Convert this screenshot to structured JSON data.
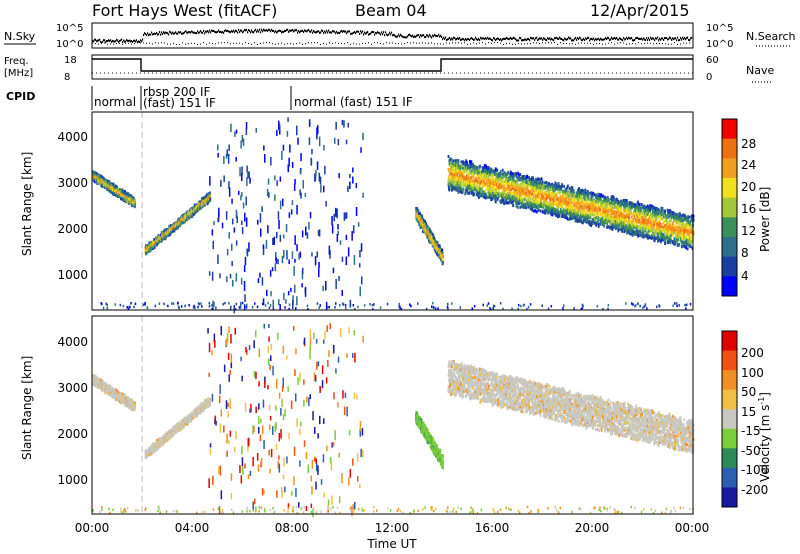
{
  "header": {
    "station": "Fort Hays West (fitACF)",
    "beam": "Beam 04",
    "date": "12/Apr/2015"
  },
  "noise_panel": {
    "left_label": "N.Sky",
    "right_label": "N.Search",
    "left_ticks": [
      "10^5",
      "10^0"
    ],
    "right_ticks": [
      "10^5",
      "10^0"
    ]
  },
  "freq_panel": {
    "left_label": "Freq.",
    "left_unit": "[MHz]",
    "left_ticks": [
      "18",
      "8"
    ],
    "right_label": "Nave",
    "right_ticks": [
      "60",
      "0"
    ]
  },
  "cpid": {
    "label": "CPID",
    "modes": [
      "normal",
      "rbsp 200 IF",
      "(fast) 151 IF",
      "normal (fast) 151 IF"
    ]
  },
  "x_axis": {
    "label": "Time UT",
    "ticks": [
      "00:00",
      "04:00",
      "08:00",
      "12:00",
      "16:00",
      "20:00",
      "00:00"
    ]
  },
  "chart_data": [
    {
      "type": "heatmap",
      "name": "power",
      "ylabel": "Slant Range [km]",
      "xlim": [
        0,
        24
      ],
      "ylim": [
        200,
        4500
      ],
      "yticks": [
        "4000",
        "3000",
        "2000",
        "1000"
      ],
      "colorbar": {
        "label": "Power [dB]",
        "ticks": [
          "28",
          "24",
          "20",
          "16",
          "12",
          "8",
          "4"
        ],
        "colors": [
          "#0000ff",
          "#1a3fa0",
          "#2d6e8a",
          "#3a8f5a",
          "#a4c73a",
          "#f0e020",
          "#f0a020",
          "#f07010",
          "#f00000"
        ]
      },
      "features": [
        {
          "start_hr": 0.0,
          "end_hr": 1.7,
          "start_km": 3150,
          "end_km": 2550,
          "width_km": 180
        },
        {
          "start_hr": 2.1,
          "end_hr": 4.7,
          "start_km": 1520,
          "end_km": 2700,
          "width_km": 150
        },
        {
          "start_hr": 12.9,
          "end_hr": 14.0,
          "start_km": 2350,
          "end_km": 1350,
          "width_km": 260
        },
        {
          "start_hr": 14.2,
          "end_hr": 24.0,
          "start_km": 3200,
          "end_km": 1900,
          "width_km": 700
        }
      ]
    },
    {
      "type": "heatmap",
      "name": "velocity",
      "ylabel": "Slant Range [km]",
      "xlim": [
        0,
        24
      ],
      "ylim": [
        200,
        4500
      ],
      "yticks": [
        "4000",
        "3000",
        "2000",
        "1000"
      ],
      "colorbar": {
        "label": "Velocity [m s^-1]",
        "ticks": [
          "200",
          "100",
          "50",
          "15",
          "-15",
          "-50",
          "-100",
          "-200"
        ],
        "colors": [
          "#1a1aa0",
          "#2d5fb0",
          "#2e8b57",
          "#7ccd3c",
          "#c8c8c0",
          "#f0c040",
          "#f09020",
          "#f05010",
          "#e00000"
        ]
      },
      "features": [
        {
          "start_hr": 0.0,
          "end_hr": 1.7,
          "start_km": 3150,
          "end_km": 2550,
          "width_km": 180
        },
        {
          "start_hr": 2.1,
          "end_hr": 4.7,
          "start_km": 1520,
          "end_km": 2700,
          "width_km": 150
        },
        {
          "start_hr": 12.9,
          "end_hr": 14.0,
          "start_km": 2350,
          "end_km": 1350,
          "width_km": 260
        },
        {
          "start_hr": 14.2,
          "end_hr": 24.0,
          "start_km": 3200,
          "end_km": 1900,
          "width_km": 700
        }
      ]
    }
  ]
}
